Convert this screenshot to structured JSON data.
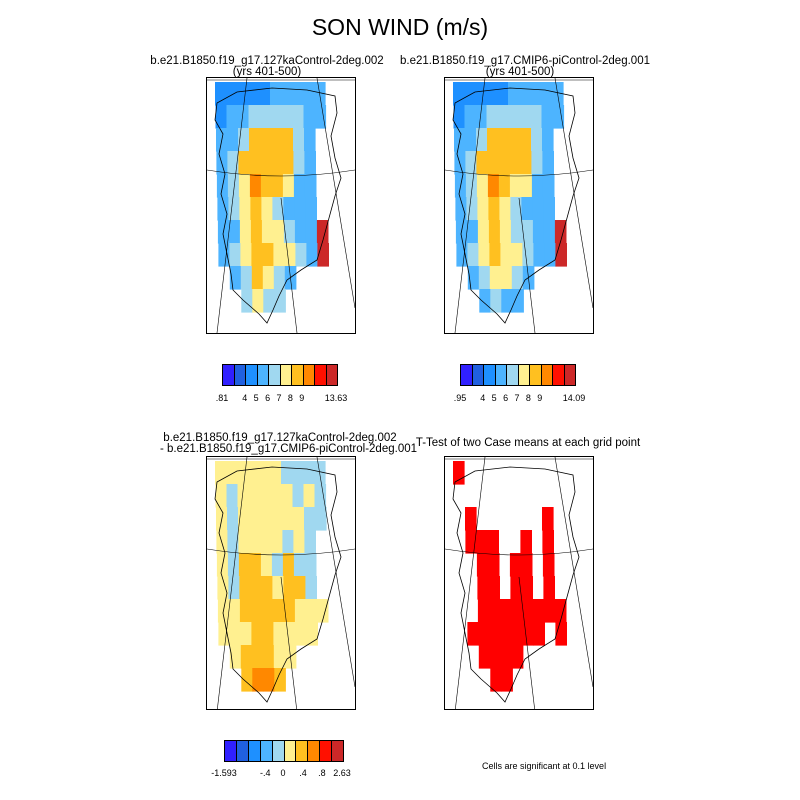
{
  "title": "SON WIND (m/s)",
  "panels": {
    "p1": {
      "title": "b.e21.B1850.f19_g17.127kaControl-2deg.002",
      "subtitle": "(yrs 401-500)"
    },
    "p2": {
      "title": "b.e21.B1850.f19_g17.CMIP6-piControl-2deg.001",
      "subtitle": "(yrs 401-500)"
    },
    "p3": {
      "title": "b.e21.B1850.f19_g17.127kaControl-2deg.002",
      "subtitle": "- b.e21.B1850.f19_g17.CMIP6-piControl-2deg.001"
    },
    "p4": {
      "title": "T-Test of two Case means at each grid point"
    }
  },
  "colorbars": {
    "cb1": {
      "labels": [
        ".81",
        "4",
        "5",
        "6",
        "7",
        "8",
        "9",
        "13.63"
      ]
    },
    "cb2": {
      "labels": [
        ".95",
        "4",
        "5",
        "6",
        "7",
        "8",
        "9",
        "14.09"
      ]
    },
    "cb3": {
      "labels": [
        "-1.593",
        "-.4",
        "0",
        ".4",
        ".8",
        "2.63"
      ]
    }
  },
  "note": "Cells are significant at 0.1 level",
  "colors": {
    "wind_scale": [
      "#3020ff",
      "#2060e0",
      "#1e90ff",
      "#4db4ff",
      "#a0d8f0",
      "#fff090",
      "#ffc020",
      "#ff8800",
      "#ff1000",
      "#cc2828"
    ],
    "diff_scale": [
      "#3020ff",
      "#2060e0",
      "#1e90ff",
      "#4db4ff",
      "#a0d8f0",
      "#fff090",
      "#ffc020",
      "#ff8800",
      "#ff1000",
      "#cc2828"
    ],
    "significant": "#ff0000",
    "ice_coast": "#000000"
  },
  "chart_data": [
    {
      "type": "heatmap",
      "title": "b.e21.B1850.f19_g17.127kaControl-2deg.002 (yrs 401-500)",
      "variable": "SON wind speed",
      "units": "m/s",
      "color_range": [
        0.81,
        13.63
      ],
      "colorbar_ticks": [
        0.81,
        4,
        5,
        6,
        7,
        8,
        9,
        13.63
      ],
      "rows": [
        [
          3.5,
          3.5,
          3.5,
          3.5,
          3.5,
          4.8,
          5.5,
          5.5,
          5.5,
          5.5
        ],
        [
          3.5,
          4.5,
          5.5,
          6.5,
          6.5,
          6.5,
          6.5,
          6.5,
          5.5,
          5.5
        ],
        [
          4.5,
          5.5,
          6.5,
          8.5,
          8.5,
          8.5,
          8.5,
          6.5,
          5.5,
          0
        ],
        [
          4.5,
          6.5,
          8.5,
          8.5,
          8.5,
          8.5,
          8.5,
          6.5,
          5.5,
          0
        ],
        [
          5.5,
          6.5,
          7.5,
          9.5,
          8.5,
          8.5,
          7.5,
          5.5,
          5.5,
          0
        ],
        [
          5.5,
          6.5,
          7.5,
          8.5,
          7.5,
          6.5,
          5.5,
          5.5,
          4.5,
          0
        ],
        [
          4.5,
          5.5,
          7.5,
          8.5,
          7.5,
          7.5,
          6.5,
          5.5,
          4.5,
          11
        ],
        [
          5.5,
          6.5,
          7.5,
          8.5,
          8.5,
          7.5,
          7.5,
          6.5,
          5.5,
          11
        ],
        [
          0,
          5.5,
          6.5,
          8.5,
          7.5,
          6.5,
          5.5,
          0,
          0,
          0
        ],
        [
          0,
          0,
          6.5,
          7.5,
          6.5,
          6.5,
          0,
          0,
          0,
          0
        ]
      ]
    },
    {
      "type": "heatmap",
      "title": "b.e21.B1850.f19_g17.CMIP6-piControl-2deg.001 (yrs 401-500)",
      "variable": "SON wind speed",
      "units": "m/s",
      "color_range": [
        0.95,
        14.09
      ],
      "colorbar_ticks": [
        0.95,
        4,
        5,
        6,
        7,
        8,
        9,
        14.09
      ],
      "rows": [
        [
          3.5,
          3.5,
          3.5,
          3.5,
          3.5,
          4.8,
          5.5,
          5.5,
          5.5,
          5.5
        ],
        [
          3.5,
          4.5,
          5.5,
          6.5,
          6.5,
          6.5,
          6.5,
          6.5,
          5.5,
          5.5
        ],
        [
          4.5,
          5.5,
          6.5,
          8.5,
          8.5,
          8.5,
          8.5,
          6.5,
          5.5,
          0
        ],
        [
          4.5,
          6.5,
          8.5,
          8.5,
          8.5,
          8.5,
          8.5,
          6.5,
          5.5,
          0
        ],
        [
          5.5,
          6.5,
          7.5,
          9.5,
          8.5,
          7.5,
          7.5,
          5.5,
          5.5,
          0
        ],
        [
          5.5,
          6.5,
          7.5,
          8.5,
          7.5,
          6.5,
          5.5,
          5.5,
          4.5,
          0
        ],
        [
          4.5,
          5.5,
          7.5,
          8.5,
          7.5,
          6.5,
          6.5,
          5.5,
          4.5,
          11
        ],
        [
          5.5,
          6.5,
          7.5,
          8.5,
          7.5,
          7.5,
          6.5,
          5.5,
          5.5,
          11
        ],
        [
          0,
          5.5,
          6.5,
          7.5,
          7.5,
          6.5,
          5.5,
          0,
          0,
          0
        ],
        [
          0,
          0,
          5.5,
          6.5,
          5.5,
          5.5,
          0,
          0,
          0,
          0
        ]
      ]
    },
    {
      "type": "heatmap",
      "title": "b.e21.B1850.f19_g17.127kaControl-2deg.002 - b.e21.B1850.f19_g17.CMIP6-piControl-2deg.001",
      "variable": "SON wind speed difference",
      "units": "m/s",
      "color_range": [
        -1.593,
        2.63
      ],
      "colorbar_ticks": [
        -1.593,
        -0.4,
        0,
        0.4,
        0.8,
        2.63
      ],
      "rows": [
        [
          0.1,
          0.1,
          0.1,
          0.1,
          0.1,
          0.1,
          -0.1,
          -0.1,
          -0.1,
          -0.1
        ],
        [
          0.1,
          -0.1,
          0.1,
          0.1,
          0.1,
          0.1,
          0.1,
          -0.1,
          0.1,
          -0.1
        ],
        [
          0.1,
          -0.1,
          0.1,
          0.1,
          0.1,
          0.1,
          0.1,
          0.1,
          -0.1,
          -0.1
        ],
        [
          0.1,
          -0.1,
          0.1,
          0.1,
          0.1,
          0.1,
          -0.1,
          0.1,
          -0.1,
          0
        ],
        [
          0.1,
          -0.1,
          0.3,
          0.3,
          0.1,
          -0.1,
          0.3,
          -0.1,
          -0.1,
          0
        ],
        [
          0.1,
          -0.1,
          0.3,
          0.3,
          0.3,
          0.1,
          0.3,
          0.3,
          -0.1,
          0
        ],
        [
          0.1,
          0.1,
          0.3,
          0.3,
          0.3,
          0.3,
          0.3,
          0.1,
          0.1,
          0.1
        ],
        [
          0.1,
          0.1,
          0.1,
          0.3,
          0.3,
          0.1,
          0.1,
          0.1,
          0.1,
          0
        ],
        [
          0,
          0.1,
          0.3,
          0.3,
          0.3,
          0.1,
          0.1,
          0,
          0,
          0
        ],
        [
          0,
          0,
          0.3,
          0.5,
          0.5,
          0.3,
          0,
          0,
          0,
          0
        ]
      ]
    },
    {
      "type": "heatmap",
      "title": "T-Test of two Case means at each grid point",
      "variable": "significance mask (1 = significant at 0.1 level)",
      "rows": [
        [
          1,
          0,
          0,
          0,
          0,
          0,
          0,
          0,
          0,
          0
        ],
        [
          0,
          0,
          0,
          0,
          0,
          0,
          0,
          0,
          0,
          0
        ],
        [
          0,
          1,
          0,
          0,
          0,
          0,
          0,
          0,
          1,
          0
        ],
        [
          0,
          1,
          1,
          1,
          0,
          0,
          1,
          0,
          1,
          0
        ],
        [
          0,
          0,
          1,
          1,
          0,
          1,
          1,
          0,
          1,
          0
        ],
        [
          0,
          0,
          1,
          1,
          0,
          1,
          1,
          0,
          1,
          0
        ],
        [
          0,
          0,
          1,
          1,
          1,
          1,
          1,
          1,
          1,
          1
        ],
        [
          0,
          1,
          1,
          1,
          1,
          1,
          1,
          1,
          0,
          1
        ],
        [
          0,
          0,
          1,
          1,
          1,
          1,
          0,
          0,
          0,
          0
        ],
        [
          0,
          0,
          0,
          1,
          1,
          0,
          0,
          0,
          0,
          0
        ]
      ]
    }
  ]
}
